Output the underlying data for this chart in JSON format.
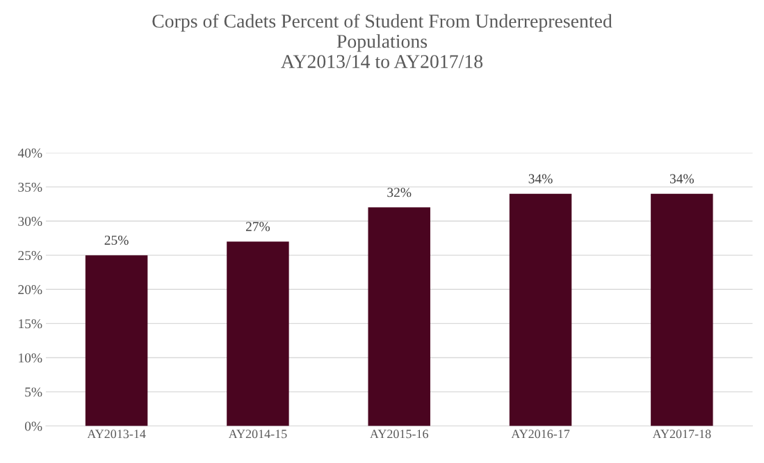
{
  "chart_data": {
    "type": "bar",
    "title": "Corps of Cadets Percent of Student From Underrepresented\nPopulations",
    "subtitle": "AY2013/14 to AY2017/18",
    "categories": [
      "AY2013-14",
      "AY2014-15",
      "AY2015-16",
      "AY2016-17",
      "AY2017-18"
    ],
    "values": [
      25,
      27,
      32,
      34,
      34
    ],
    "value_labels": [
      "25%",
      "27%",
      "32%",
      "34%",
      "34%"
    ],
    "color": "#4a0520",
    "ylim": [
      0,
      40
    ],
    "yticks": [
      {
        "value": 0,
        "label": "0%"
      },
      {
        "value": 5,
        "label": "5%"
      },
      {
        "value": 10,
        "label": "10%"
      },
      {
        "value": 15,
        "label": "15%"
      },
      {
        "value": 20,
        "label": "20%"
      },
      {
        "value": 25,
        "label": "25%"
      },
      {
        "value": 30,
        "label": "30%"
      },
      {
        "value": 35,
        "label": "35%"
      },
      {
        "value": 40,
        "label": "40%"
      }
    ],
    "grid": "y",
    "legend": false
  }
}
